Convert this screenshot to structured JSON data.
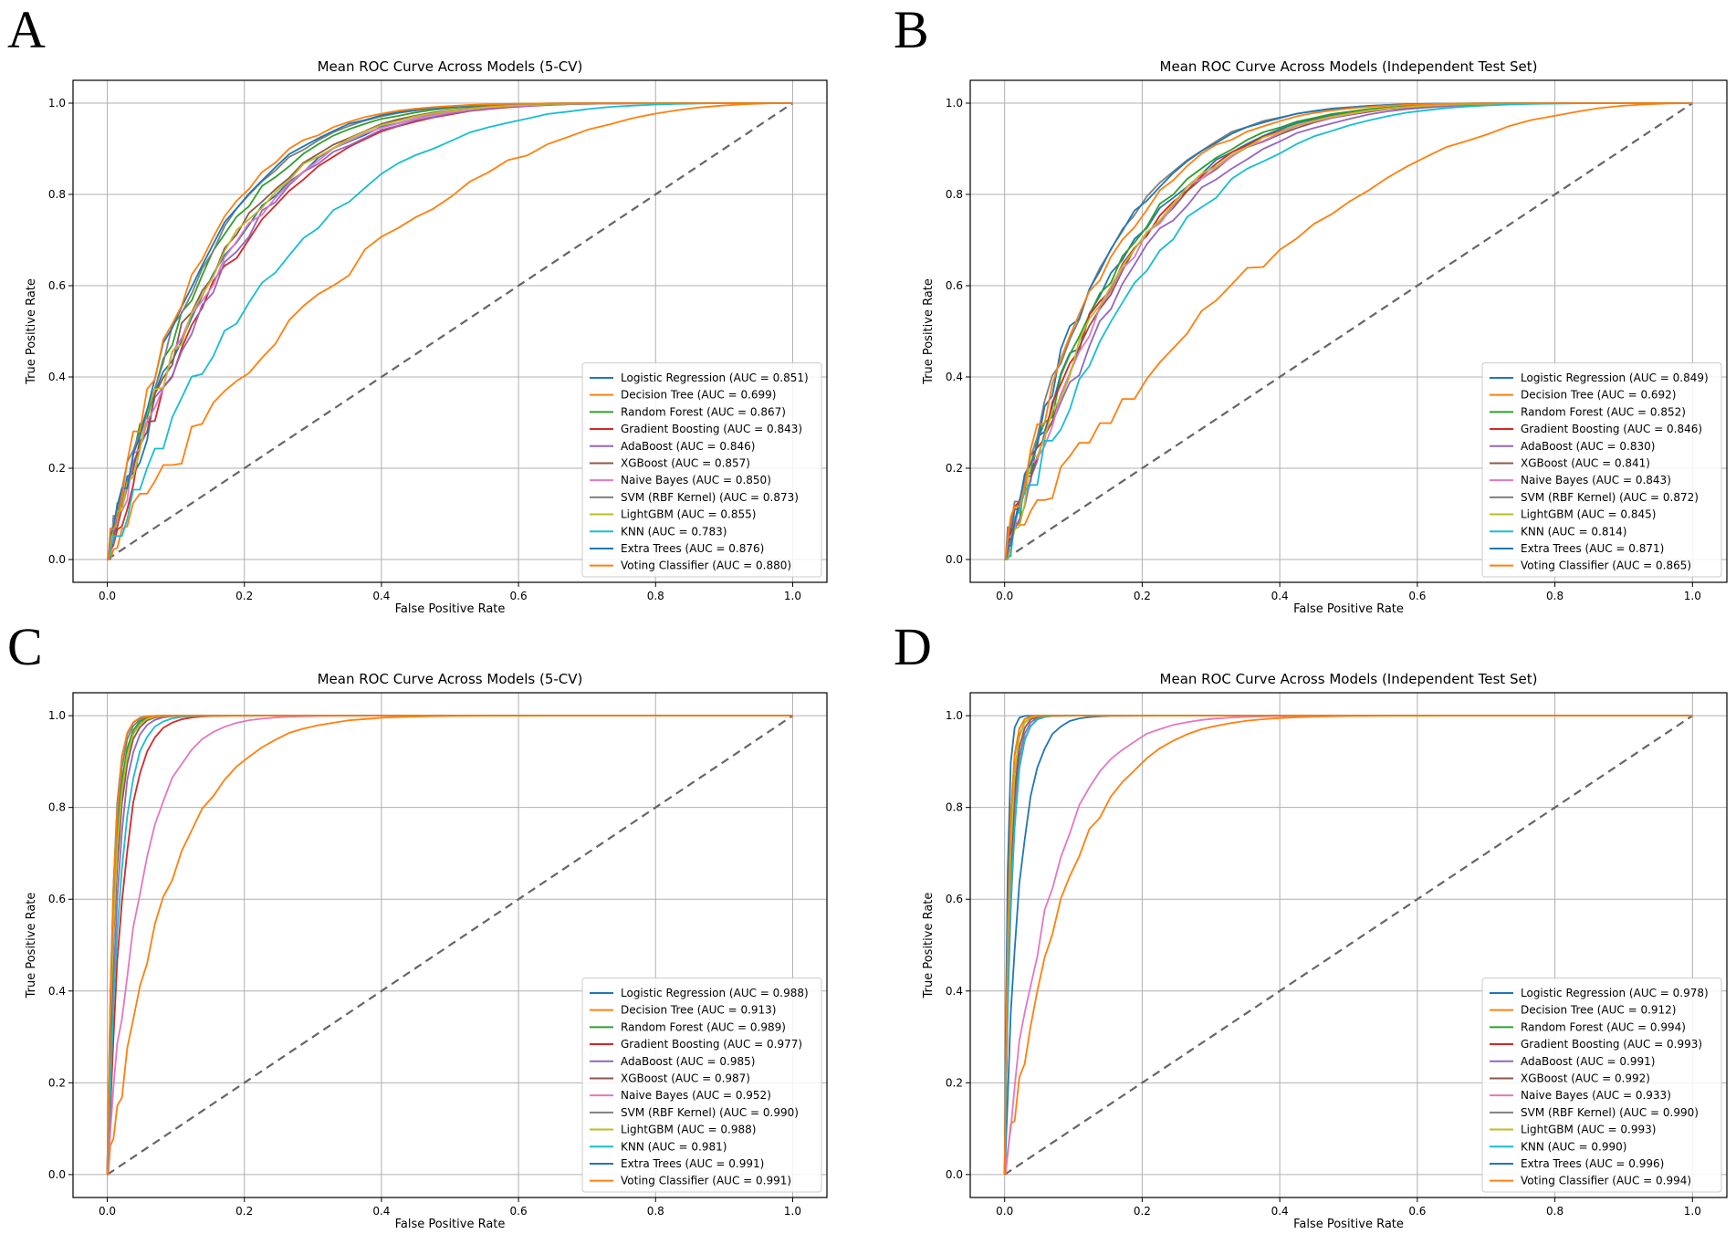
{
  "charts": [
    {
      "panel": "A",
      "title": "Mean ROC Curve Across Models (5-CV)",
      "xlabel": "False Positive Rate",
      "ylabel": "True Positive Rate",
      "xlim": [
        -0.05,
        1.05
      ],
      "ylim": [
        -0.05,
        1.05
      ],
      "xticks": [
        "0.0",
        "0.2",
        "0.4",
        "0.6",
        "0.8",
        "1.0"
      ],
      "yticks": [
        "0.0",
        "0.2",
        "0.4",
        "0.6",
        "0.8",
        "1.0"
      ],
      "grid": true,
      "legend_loc": "lower-right",
      "series": [
        {
          "name": "Logistic Regression (AUC = 0.851)",
          "auc": 0.851
        },
        {
          "name": "Decision Tree (AUC = 0.699)",
          "auc": 0.699
        },
        {
          "name": "Random Forest (AUC = 0.867)",
          "auc": 0.867
        },
        {
          "name": "Gradient Boosting (AUC = 0.843)",
          "auc": 0.843
        },
        {
          "name": "AdaBoost (AUC = 0.846)",
          "auc": 0.846
        },
        {
          "name": "XGBoost (AUC = 0.857)",
          "auc": 0.857
        },
        {
          "name": "Naive Bayes (AUC = 0.850)",
          "auc": 0.85
        },
        {
          "name": "SVM (RBF Kernel) (AUC = 0.873)",
          "auc": 0.873
        },
        {
          "name": "LightGBM (AUC = 0.855)",
          "auc": 0.855
        },
        {
          "name": "KNN (AUC = 0.783)",
          "auc": 0.783
        },
        {
          "name": "Extra Trees (AUC = 0.876)",
          "auc": 0.876
        },
        {
          "name": "Voting Classifier (AUC = 0.880)",
          "auc": 0.88
        }
      ]
    },
    {
      "panel": "B",
      "title": "Mean ROC Curve Across Models (Independent Test Set)",
      "xlabel": "False Positive Rate",
      "ylabel": "True Positive Rate",
      "xlim": [
        -0.05,
        1.05
      ],
      "ylim": [
        -0.05,
        1.05
      ],
      "xticks": [
        "0.0",
        "0.2",
        "0.4",
        "0.6",
        "0.8",
        "1.0"
      ],
      "yticks": [
        "0.0",
        "0.2",
        "0.4",
        "0.6",
        "0.8",
        "1.0"
      ],
      "grid": true,
      "legend_loc": "lower-right",
      "series": [
        {
          "name": "Logistic Regression (AUC = 0.849)",
          "auc": 0.849
        },
        {
          "name": "Decision Tree (AUC = 0.692)",
          "auc": 0.692
        },
        {
          "name": "Random Forest (AUC = 0.852)",
          "auc": 0.852
        },
        {
          "name": "Gradient Boosting (AUC = 0.846)",
          "auc": 0.846
        },
        {
          "name": "AdaBoost (AUC = 0.830)",
          "auc": 0.83
        },
        {
          "name": "XGBoost (AUC = 0.841)",
          "auc": 0.841
        },
        {
          "name": "Naive Bayes (AUC = 0.843)",
          "auc": 0.843
        },
        {
          "name": "SVM (RBF Kernel) (AUC = 0.872)",
          "auc": 0.872
        },
        {
          "name": "LightGBM (AUC = 0.845)",
          "auc": 0.845
        },
        {
          "name": "KNN (AUC = 0.814)",
          "auc": 0.814
        },
        {
          "name": "Extra Trees (AUC = 0.871)",
          "auc": 0.871
        },
        {
          "name": "Voting Classifier (AUC = 0.865)",
          "auc": 0.865
        }
      ]
    },
    {
      "panel": "C",
      "title": "Mean ROC Curve Across Models (5-CV)",
      "xlabel": "False Positive Rate",
      "ylabel": "True Positive Rate",
      "xlim": [
        -0.05,
        1.05
      ],
      "ylim": [
        -0.05,
        1.05
      ],
      "xticks": [
        "0.0",
        "0.2",
        "0.4",
        "0.6",
        "0.8",
        "1.0"
      ],
      "yticks": [
        "0.0",
        "0.2",
        "0.4",
        "0.6",
        "0.8",
        "1.0"
      ],
      "grid": true,
      "legend_loc": "lower-right",
      "series": [
        {
          "name": "Logistic Regression (AUC = 0.988)",
          "auc": 0.988
        },
        {
          "name": "Decision Tree (AUC = 0.913)",
          "auc": 0.913
        },
        {
          "name": "Random Forest (AUC = 0.989)",
          "auc": 0.989
        },
        {
          "name": "Gradient Boosting (AUC = 0.977)",
          "auc": 0.977
        },
        {
          "name": "AdaBoost (AUC = 0.985)",
          "auc": 0.985
        },
        {
          "name": "XGBoost (AUC = 0.987)",
          "auc": 0.987
        },
        {
          "name": "Naive Bayes (AUC = 0.952)",
          "auc": 0.952
        },
        {
          "name": "SVM (RBF Kernel) (AUC = 0.990)",
          "auc": 0.99
        },
        {
          "name": "LightGBM (AUC = 0.988)",
          "auc": 0.988
        },
        {
          "name": "KNN (AUC = 0.981)",
          "auc": 0.981
        },
        {
          "name": "Extra Trees (AUC = 0.991)",
          "auc": 0.991
        },
        {
          "name": "Voting Classifier (AUC = 0.991)",
          "auc": 0.991
        }
      ]
    },
    {
      "panel": "D",
      "title": "Mean ROC Curve Across Models (Independent Test Set)",
      "xlabel": "False Positive Rate",
      "ylabel": "True Positive Rate",
      "xlim": [
        -0.05,
        1.05
      ],
      "ylim": [
        -0.05,
        1.05
      ],
      "xticks": [
        "0.0",
        "0.2",
        "0.4",
        "0.6",
        "0.8",
        "1.0"
      ],
      "yticks": [
        "0.0",
        "0.2",
        "0.4",
        "0.6",
        "0.8",
        "1.0"
      ],
      "grid": true,
      "legend_loc": "lower-right",
      "series": [
        {
          "name": "Logistic Regression (AUC = 0.978)",
          "auc": 0.978
        },
        {
          "name": "Decision Tree (AUC = 0.912)",
          "auc": 0.912
        },
        {
          "name": "Random Forest (AUC = 0.994)",
          "auc": 0.994
        },
        {
          "name": "Gradient Boosting (AUC = 0.993)",
          "auc": 0.993
        },
        {
          "name": "AdaBoost (AUC = 0.991)",
          "auc": 0.991
        },
        {
          "name": "XGBoost (AUC = 0.992)",
          "auc": 0.992
        },
        {
          "name": "Naive Bayes (AUC = 0.933)",
          "auc": 0.933
        },
        {
          "name": "SVM (RBF Kernel) (AUC = 0.990)",
          "auc": 0.99
        },
        {
          "name": "LightGBM (AUC = 0.993)",
          "auc": 0.993
        },
        {
          "name": "KNN (AUC = 0.990)",
          "auc": 0.99
        },
        {
          "name": "Extra Trees (AUC = 0.996)",
          "auc": 0.996
        },
        {
          "name": "Voting Classifier (AUC = 0.994)",
          "auc": 0.994
        }
      ]
    }
  ],
  "chart_data": [
    {
      "type": "line",
      "panel": "A",
      "title": "Mean ROC Curve Across Models (5-CV)",
      "xlabel": "False Positive Rate",
      "ylabel": "True Positive Rate",
      "xlim": [
        0,
        1
      ],
      "ylim": [
        0,
        1
      ]
    },
    {
      "type": "line",
      "panel": "B",
      "title": "Mean ROC Curve Across Models (Independent Test Set)",
      "xlabel": "False Positive Rate",
      "ylabel": "True Positive Rate",
      "xlim": [
        0,
        1
      ],
      "ylim": [
        0,
        1
      ]
    },
    {
      "type": "line",
      "panel": "C",
      "title": "Mean ROC Curve Across Models (5-CV)",
      "xlabel": "False Positive Rate",
      "ylabel": "True Positive Rate",
      "xlim": [
        0,
        1
      ],
      "ylim": [
        0,
        1
      ]
    },
    {
      "type": "line",
      "panel": "D",
      "title": "Mean ROC Curve Across Models (Independent Test Set)",
      "xlabel": "False Positive Rate",
      "ylabel": "True Positive Rate",
      "xlim": [
        0,
        1
      ],
      "ylim": [
        0,
        1
      ]
    }
  ],
  "colors": [
    "#1f77b4",
    "#ff7f0e",
    "#2ca02c",
    "#d62728",
    "#9467bd",
    "#8c564b",
    "#e377c2",
    "#7f7f7f",
    "#bcbd22",
    "#17becf",
    "#1f77b4",
    "#ff7f0e"
  ],
  "diagonal_color": "#666666"
}
